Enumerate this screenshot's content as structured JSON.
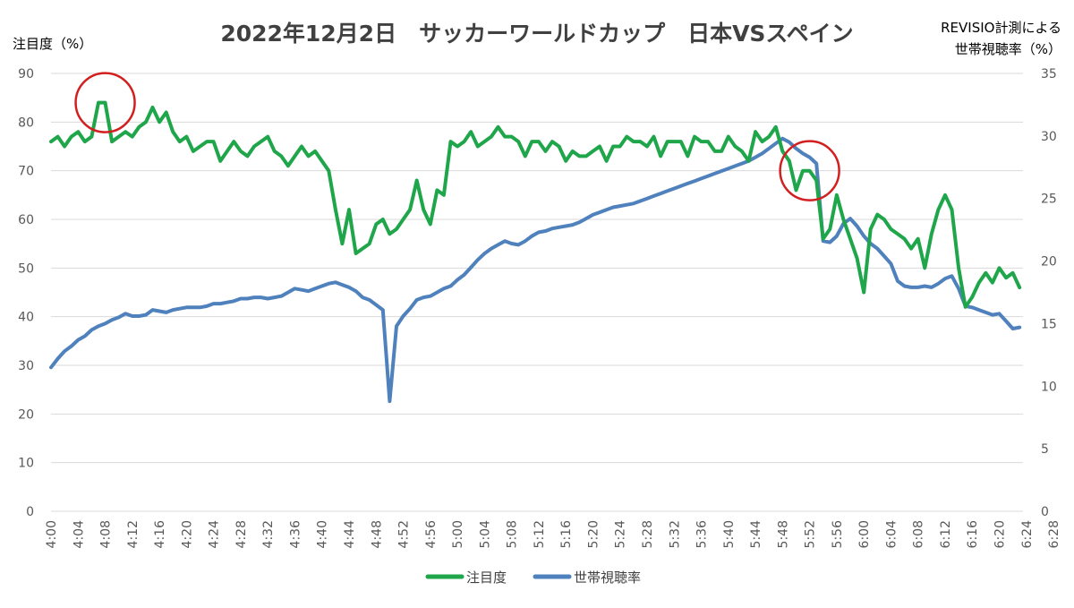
{
  "colors": {
    "attention": "#1fa64a",
    "household": "#4f81bd",
    "highlight": "#d22020",
    "grid": "#d9d9d9"
  },
  "chart_data": {
    "type": "line",
    "title": "2022年12月2日　サッカーワールドカップ　日本VSスペイン",
    "ylabel_left": "注目度（%）",
    "ylabel_right_line1": "REVISIO計測による",
    "ylabel_right_line2": "世帯視聴率（%）",
    "ylim_left": [
      0,
      90
    ],
    "ylim_right": [
      0,
      35
    ],
    "yticks_left": [
      "0",
      "10",
      "20",
      "30",
      "40",
      "50",
      "60",
      "70",
      "80",
      "90"
    ],
    "yticks_right": [
      "0",
      "5",
      "10",
      "15",
      "20",
      "25",
      "30",
      "35"
    ],
    "xtick_labels": [
      "4:00",
      "4:04",
      "4:08",
      "4:12",
      "4:16",
      "4:20",
      "4:24",
      "4:28",
      "4:32",
      "4:36",
      "4:40",
      "4:44",
      "4:48",
      "4:52",
      "4:56",
      "5:00",
      "5:04",
      "5:08",
      "5:12",
      "5:16",
      "5:20",
      "5:24",
      "5:28",
      "5:32",
      "5:36",
      "5:40",
      "5:44",
      "5:48",
      "5:52",
      "5:56",
      "6:00",
      "6:04",
      "6:08",
      "6:12",
      "6:16",
      "6:20",
      "6:24",
      "6:28"
    ],
    "x_start_minute": 0,
    "x_step_minutes": 1,
    "grid": true,
    "legend_position": "bottom",
    "series": [
      {
        "name": "注目度",
        "axis": "left",
        "values": [
          76,
          77,
          75,
          77,
          78,
          76,
          77,
          84,
          84,
          76,
          77,
          78,
          77,
          79,
          80,
          83,
          80,
          82,
          78,
          76,
          77,
          74,
          75,
          76,
          76,
          72,
          74,
          76,
          74,
          73,
          75,
          76,
          77,
          74,
          73,
          71,
          73,
          75,
          73,
          74,
          72,
          70,
          62,
          55,
          62,
          53,
          54,
          55,
          59,
          60,
          57,
          58,
          60,
          62,
          68,
          62,
          59,
          66,
          65,
          76,
          75,
          76,
          78,
          75,
          76,
          77,
          79,
          77,
          77,
          76,
          73,
          76,
          76,
          74,
          76,
          75,
          72,
          74,
          73,
          73,
          74,
          75,
          72,
          75,
          75,
          77,
          76,
          76,
          75,
          77,
          73,
          76,
          76,
          76,
          73,
          77,
          76,
          76,
          74,
          74,
          77,
          75,
          74,
          72,
          78,
          76,
          77,
          79,
          74,
          72,
          66,
          70,
          70,
          68,
          56,
          58,
          65,
          60,
          56,
          52,
          45,
          58,
          61,
          60,
          58,
          57,
          56,
          54,
          56,
          50,
          57,
          62,
          65,
          62,
          50,
          42,
          44,
          47,
          49,
          47,
          50,
          48,
          49,
          46
        ]
      },
      {
        "name": "世帯視聴率",
        "axis": "right",
        "values": [
          11.5,
          12.2,
          12.8,
          13.2,
          13.7,
          14.0,
          14.5,
          14.8,
          15.0,
          15.3,
          15.5,
          15.8,
          15.6,
          15.6,
          15.7,
          16.1,
          16.0,
          15.9,
          16.1,
          16.2,
          16.3,
          16.3,
          16.3,
          16.4,
          16.6,
          16.6,
          16.7,
          16.8,
          17.0,
          17.0,
          17.1,
          17.1,
          17.0,
          17.1,
          17.2,
          17.5,
          17.8,
          17.7,
          17.6,
          17.8,
          18.0,
          18.2,
          18.3,
          18.1,
          17.9,
          17.6,
          17.1,
          16.9,
          16.5,
          16.1,
          8.8,
          14.8,
          15.6,
          16.2,
          16.9,
          17.1,
          17.2,
          17.5,
          17.8,
          18.0,
          18.5,
          18.9,
          19.5,
          20.1,
          20.6,
          21.0,
          21.3,
          21.6,
          21.4,
          21.3,
          21.6,
          22.0,
          22.3,
          22.4,
          22.6,
          22.7,
          22.8,
          22.9,
          23.1,
          23.4,
          23.7,
          23.9,
          24.1,
          24.3,
          24.4,
          24.5,
          24.6,
          24.8,
          25.0,
          25.2,
          25.4,
          25.6,
          25.8,
          26.0,
          26.2,
          26.4,
          26.6,
          26.8,
          27.0,
          27.2,
          27.4,
          27.6,
          27.8,
          28.0,
          28.3,
          28.6,
          29.0,
          29.4,
          29.8,
          29.5,
          29.0,
          28.6,
          28.3,
          27.8,
          21.6,
          21.5,
          22.0,
          23.0,
          23.4,
          22.8,
          22.0,
          21.4,
          21.0,
          20.4,
          19.8,
          18.4,
          18.0,
          17.9,
          17.9,
          18.0,
          17.9,
          18.2,
          18.6,
          18.8,
          17.8,
          16.4,
          16.3,
          16.1,
          15.9,
          15.7,
          15.8,
          15.2,
          14.6,
          14.7
        ]
      }
    ],
    "highlight_circles_at": [
      "4:08",
      "5:52"
    ]
  }
}
